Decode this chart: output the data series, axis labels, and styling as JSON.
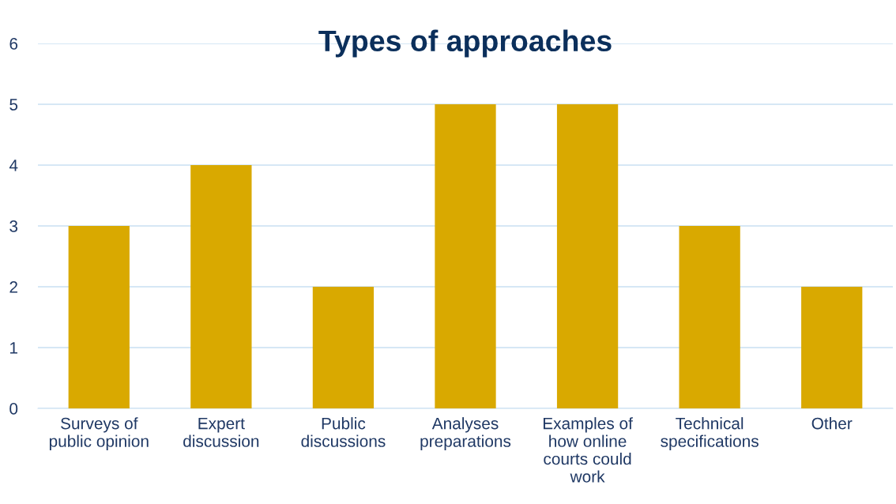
{
  "chart_data": {
    "type": "bar",
    "title": "Types of approaches",
    "categories": [
      "Surveys of\npublic opinion",
      "Expert\ndiscussion",
      "Public\ndiscussions",
      "Analyses\npreparations",
      "Examples of\nhow online\ncourts could\nwork",
      "Technical\nspecifications",
      "Other"
    ],
    "values": [
      3,
      4,
      2,
      5,
      5,
      3,
      2
    ],
    "color": "#d9a900",
    "ylim": [
      0,
      6
    ],
    "yticks": [
      0,
      1,
      2,
      3,
      4,
      5,
      6
    ],
    "grid": "y"
  }
}
